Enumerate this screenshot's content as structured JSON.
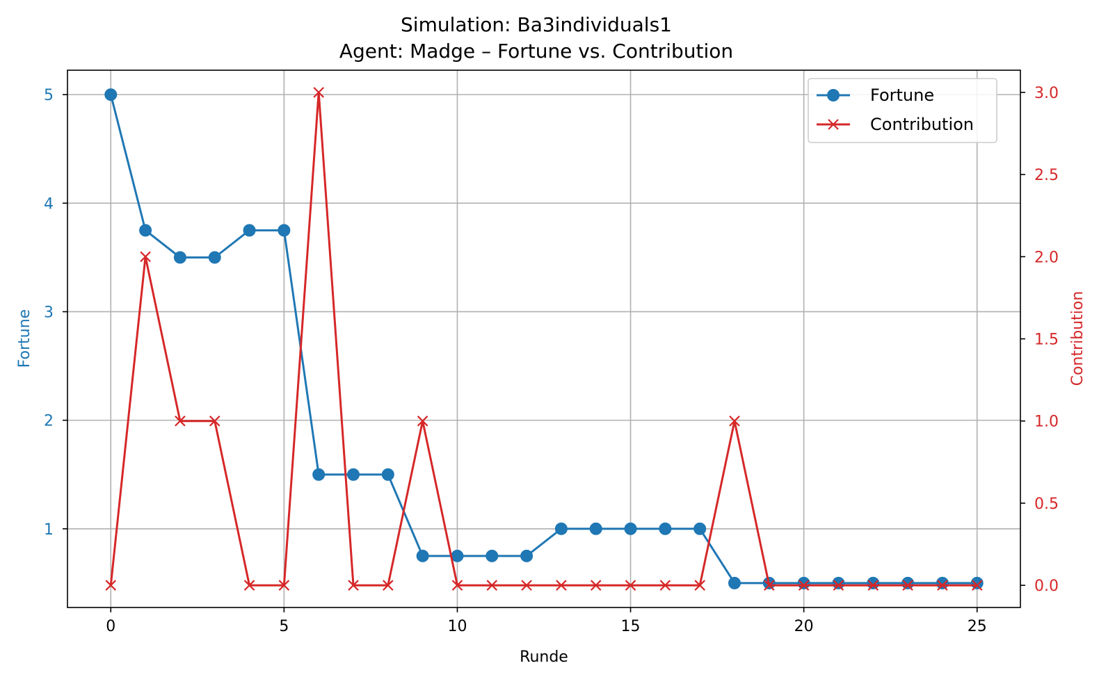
{
  "chart_data": {
    "type": "line",
    "title": "Simulation: Ba3individuals1",
    "subtitle": "Agent: Madge – Fortune vs. Contribution",
    "xlabel": "Runde",
    "ylabel_left": "Fortune",
    "ylabel_right": "Contribution",
    "x": [
      0,
      1,
      2,
      3,
      4,
      5,
      6,
      7,
      8,
      9,
      10,
      11,
      12,
      13,
      14,
      15,
      16,
      17,
      18,
      19,
      20,
      21,
      22,
      23,
      24,
      25
    ],
    "xlim": [
      -1.25,
      26.25
    ],
    "ylim_left": [
      0.275,
      5.225
    ],
    "ylim_right": [
      -0.135,
      3.135
    ],
    "xticks": [
      "0",
      "5",
      "10",
      "15",
      "20",
      "25"
    ],
    "yticks_left": [
      "1",
      "2",
      "3",
      "4",
      "5"
    ],
    "yticks_right": [
      "0.0",
      "0.5",
      "1.0",
      "1.5",
      "2.0",
      "2.5",
      "3.0"
    ],
    "grid": true,
    "legend_position": "upper-right",
    "series": [
      {
        "name": "Fortune",
        "axis": "left",
        "marker": "circle",
        "color": "#1f77b4",
        "values": [
          5,
          3.75,
          3.5,
          3.5,
          3.75,
          3.75,
          1.5,
          1.5,
          1.5,
          0.75,
          0.75,
          0.75,
          0.75,
          1,
          1,
          1,
          1,
          1,
          0.5,
          0.5,
          0.5,
          0.5,
          0.5,
          0.5,
          0.5,
          0.5
        ]
      },
      {
        "name": "Contribution",
        "axis": "right",
        "marker": "x",
        "color": "#d62728",
        "values": [
          0,
          2,
          1,
          1,
          0,
          0,
          3,
          0,
          0,
          1,
          0,
          0,
          0,
          0,
          0,
          0,
          0,
          0,
          1,
          0,
          0,
          0,
          0,
          0,
          0,
          0
        ]
      }
    ]
  }
}
